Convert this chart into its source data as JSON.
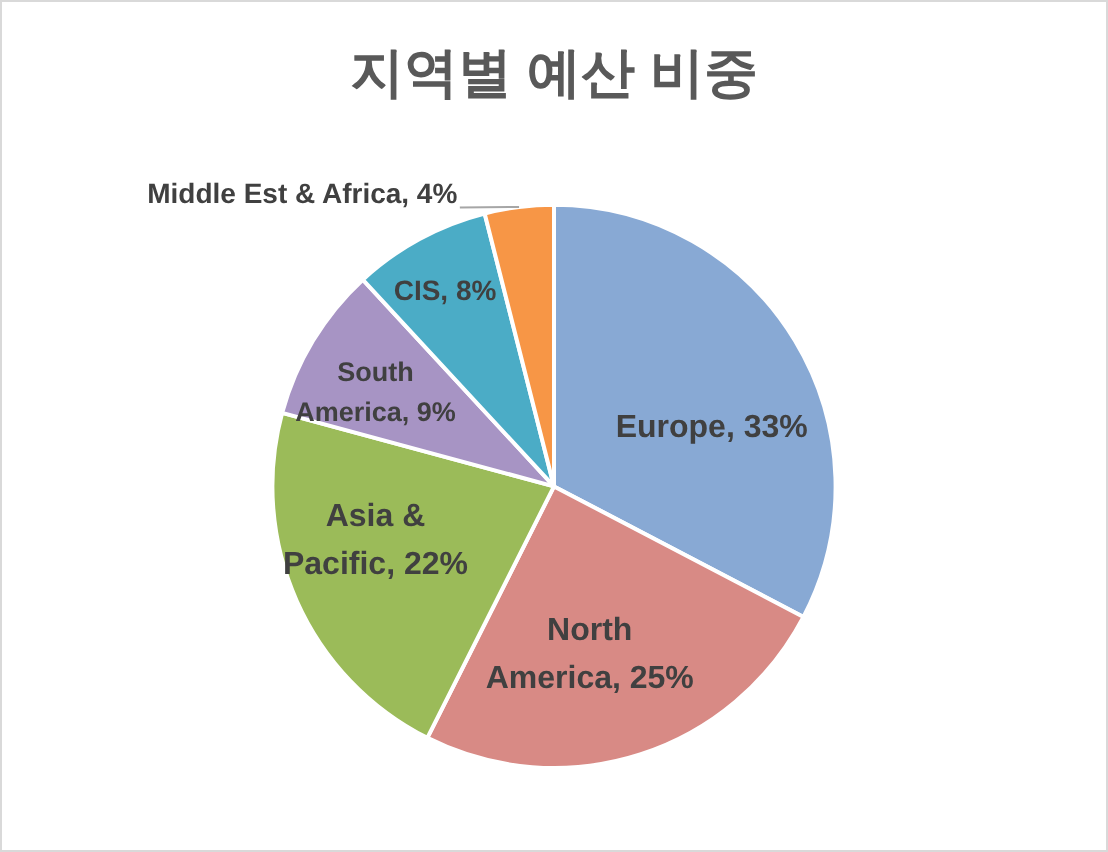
{
  "chart_data": {
    "type": "pie",
    "title": "지역별 예산 비중",
    "categories": [
      "Europe",
      "North America",
      "Asia & Pacific",
      "South America",
      "CIS",
      "Middle Est & Africa"
    ],
    "values": [
      33,
      25,
      22,
      9,
      8,
      4
    ],
    "colors": [
      "#88a9d4",
      "#d88a85",
      "#9bbb59",
      "#a794c4",
      "#4bacc6",
      "#f79646"
    ],
    "value_labels": [
      "33%",
      "25%",
      "22%",
      "9%",
      "8%",
      "4%"
    ],
    "legend": false
  }
}
